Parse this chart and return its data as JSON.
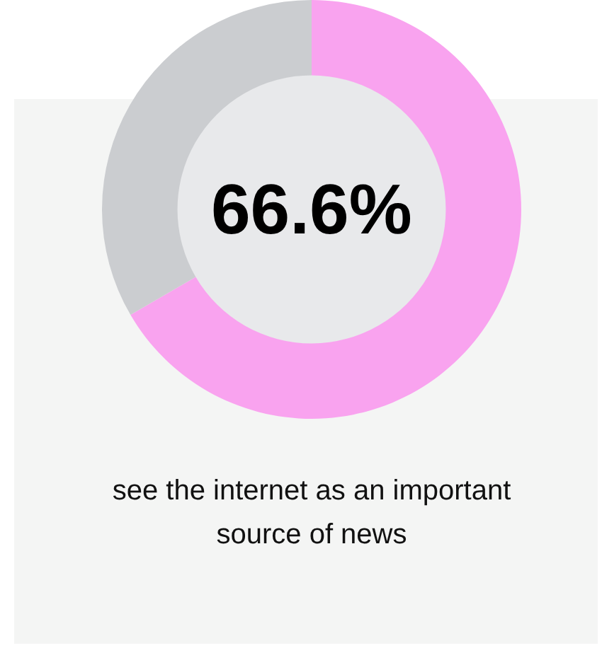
{
  "chart_data": {
    "type": "donut",
    "categories": [
      null,
      null
    ],
    "values": [
      66.6,
      33.4
    ],
    "colors": [
      "#f9a3ef",
      "#cbcdd0"
    ],
    "annotations": [
      "66.6%",
      "see the internet as an important source of news"
    ]
  }
}
